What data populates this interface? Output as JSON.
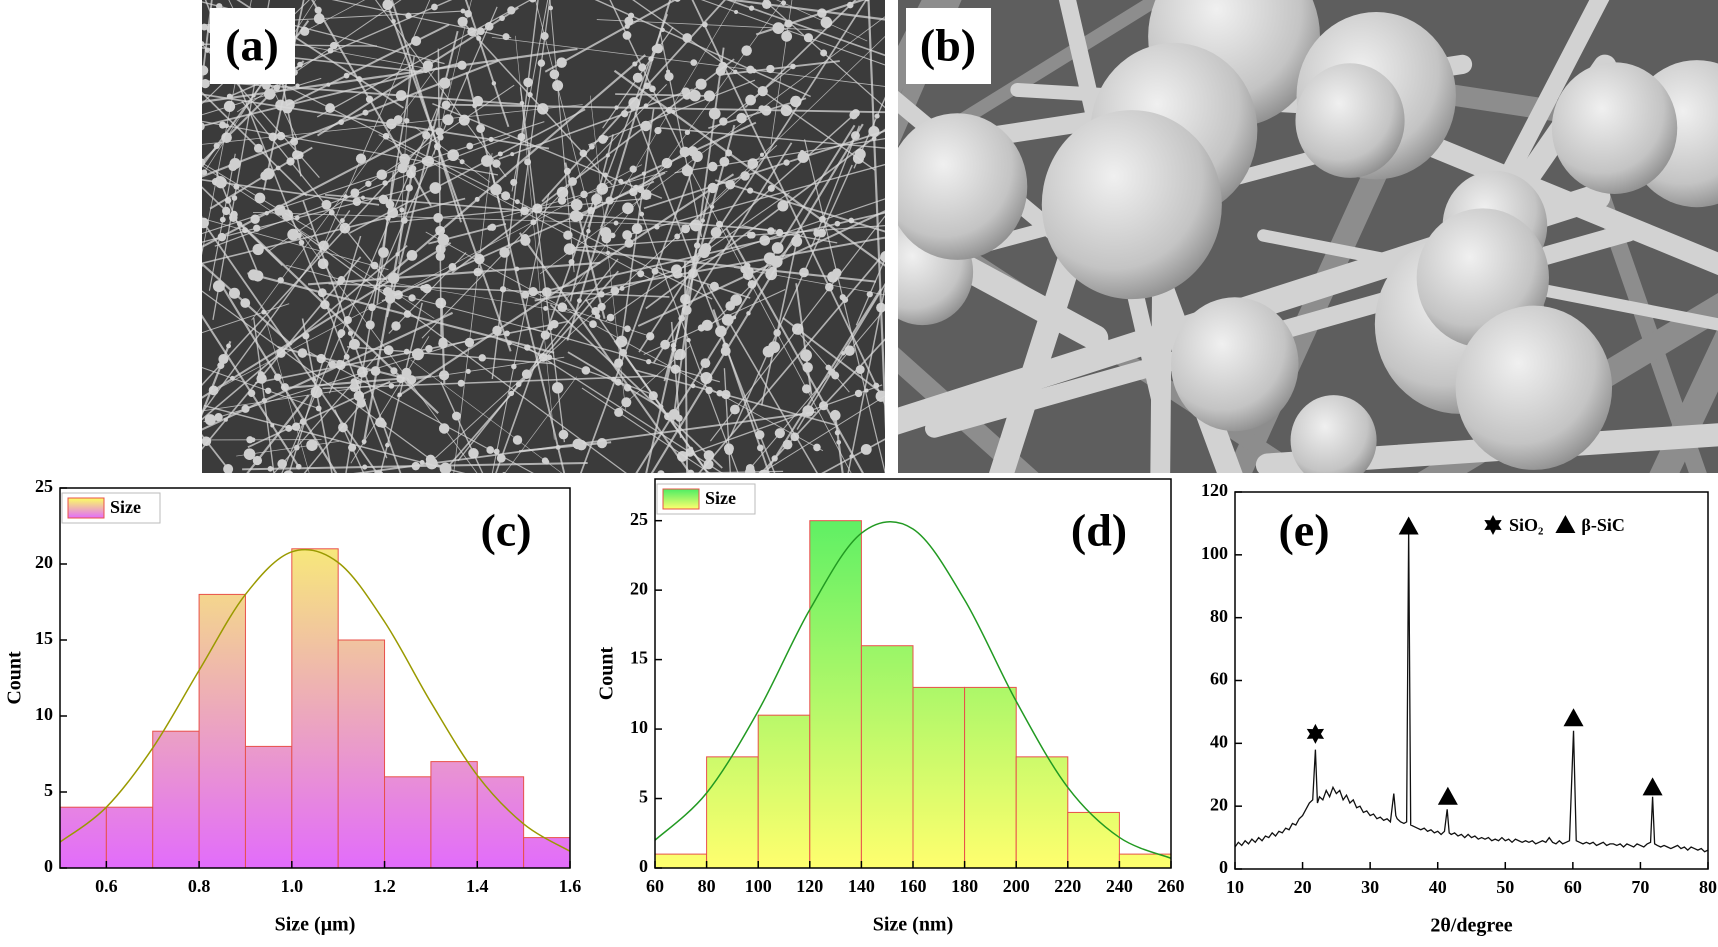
{
  "panels": [
    {
      "label": "(a)"
    },
    {
      "label": "(b)"
    }
  ],
  "chart_data": [
    {
      "type": "histogram",
      "panel_label": "(c)",
      "xlabel": "Size (μm)",
      "ylabel": "Count",
      "bins": [
        0.5,
        0.6,
        0.7,
        0.8,
        0.9,
        1.0,
        1.1,
        1.2,
        1.3,
        1.4,
        1.5,
        1.6
      ],
      "series": [
        {
          "name": "Size",
          "values": [
            4,
            4,
            9,
            18,
            8,
            21,
            15,
            6,
            7,
            6,
            2
          ]
        }
      ],
      "gradient": [
        "#fbff62",
        "#e26cfb"
      ],
      "edge_color": "#e8504a",
      "fit": {
        "x": [
          0.5,
          0.6,
          0.7,
          0.8,
          0.9,
          1.0,
          1.1,
          1.2,
          1.3,
          1.4,
          1.5,
          1.6
        ],
        "y": [
          1.7,
          4.0,
          7.9,
          13.0,
          18.0,
          20.8,
          20.1,
          16.2,
          10.9,
          6.1,
          2.9,
          1.1
        ]
      },
      "fit_color": "#9a9a00",
      "xlim": [
        0.5,
        1.6
      ],
      "xticks": [
        0.6,
        0.8,
        {
          "value": 1,
          "label": "1.0"
        },
        1.2,
        1.4,
        1.6
      ],
      "ylim": [
        0,
        25
      ],
      "yticks": [
        0,
        5,
        10,
        15,
        20,
        25
      ]
    },
    {
      "type": "histogram",
      "panel_label": "(d)",
      "xlabel": "Size (nm)",
      "ylabel": "Count",
      "bins": [
        60,
        80,
        100,
        120,
        140,
        160,
        180,
        200,
        220,
        240,
        260
      ],
      "series": [
        {
          "name": "Size",
          "values": [
            1,
            8,
            11,
            25,
            16,
            13,
            13,
            8,
            4,
            1
          ]
        }
      ],
      "gradient": [
        "#4cee63",
        "#ffff6e"
      ],
      "edge_color": "#e8504a",
      "fit": {
        "x": [
          60,
          80,
          100,
          120,
          140,
          160,
          180,
          200,
          220,
          240,
          260
        ],
        "y": [
          2.0,
          5.4,
          11.3,
          18.6,
          24.1,
          24.4,
          19.3,
          12.0,
          5.8,
          2.2,
          0.7
        ]
      },
      "fit_color": "#229a22",
      "xlim": [
        60,
        260
      ],
      "xticks": [
        60,
        80,
        100,
        120,
        140,
        160,
        180,
        200,
        220,
        240,
        260
      ],
      "ylim": [
        0,
        28
      ],
      "yticks": [
        0,
        5,
        10,
        15,
        20,
        25
      ]
    },
    {
      "type": "line",
      "panel_label": "(e)",
      "xlabel": "2θ/degree",
      "color": "#111111",
      "x": [
        10,
        10.5,
        11,
        11.5,
        12,
        12.5,
        13,
        13.5,
        14,
        14.5,
        15,
        15.5,
        16,
        16.5,
        17,
        17.5,
        18,
        18.5,
        19,
        19.5,
        20,
        20.5,
        21,
        21.5,
        21.9,
        22.2,
        22.5,
        23,
        23.5,
        24,
        24.5,
        25,
        25.5,
        26,
        26.5,
        27,
        27.5,
        28,
        28.5,
        29,
        29.5,
        30,
        30.5,
        31,
        31.5,
        32,
        32.5,
        33,
        33.5,
        33.8,
        34,
        34.5,
        35,
        35.4,
        35.7,
        36,
        36.5,
        37,
        37.5,
        38,
        38.5,
        39,
        39.5,
        40,
        40.5,
        41,
        41.4,
        41.7,
        42,
        42.5,
        43,
        43.5,
        44,
        44.5,
        45,
        45.5,
        46,
        46.5,
        47,
        47.5,
        48,
        48.5,
        49,
        49.5,
        50,
        50.5,
        51,
        51.5,
        52,
        52.5,
        53,
        53.5,
        54,
        54.5,
        55,
        55.5,
        56,
        56.5,
        57,
        57.5,
        58,
        58.5,
        59,
        59.5,
        60.1,
        60.5,
        61,
        61.5,
        62,
        62.5,
        63,
        63.5,
        64,
        64.5,
        65,
        65.5,
        66,
        66.5,
        67,
        67.5,
        68,
        68.5,
        69,
        69.5,
        70,
        70.5,
        71,
        71.5,
        71.8,
        72.1,
        72.5,
        73,
        73.5,
        74,
        74.5,
        75,
        75.5,
        76,
        76.5,
        77,
        77.5,
        78,
        78.5,
        79,
        79.5,
        80
      ],
      "values": [
        7,
        8.5,
        7.5,
        9,
        8,
        9.5,
        8.5,
        10,
        9,
        10.5,
        10,
        11.5,
        10.5,
        12,
        11.5,
        13,
        12.5,
        14.5,
        14,
        16,
        17,
        19,
        21,
        22,
        38,
        21,
        23,
        22,
        25,
        23,
        26,
        24,
        25,
        22,
        23.5,
        21,
        22,
        19.5,
        20,
        18,
        18.5,
        17,
        17.5,
        16,
        16.5,
        15.5,
        16,
        15,
        24,
        17,
        16,
        15,
        14.5,
        15,
        108,
        14,
        13.5,
        13,
        12.5,
        13,
        12,
        12.5,
        11.5,
        12,
        11,
        12,
        19,
        11.5,
        11,
        11.5,
        10.5,
        11,
        10,
        11,
        10,
        10.5,
        9.5,
        10,
        9.5,
        10,
        9,
        9.5,
        9,
        10,
        9,
        9.5,
        8.5,
        9.5,
        9,
        8.5,
        9,
        8.5,
        9,
        8,
        8.5,
        9,
        8.5,
        10,
        8.5,
        8,
        9,
        8,
        8.5,
        9,
        44,
        9,
        8.5,
        8,
        8.5,
        8,
        8.5,
        7.5,
        8,
        8.5,
        7.5,
        8,
        8,
        7.5,
        8,
        7,
        8,
        7.5,
        7,
        8,
        7.5,
        7,
        8,
        8.5,
        23,
        8,
        7.5,
        7,
        7.5,
        7,
        6.5,
        7,
        7.5,
        6.5,
        7,
        6,
        7,
        6.5,
        6,
        6.5,
        5.5,
        6
      ],
      "markers": [
        {
          "x": 21.9,
          "y": 43,
          "symbol": "star"
        },
        {
          "x": 35.7,
          "y": 109,
          "symbol": "triangle"
        },
        {
          "x": 41.5,
          "y": 23,
          "symbol": "triangle"
        },
        {
          "x": 60.1,
          "y": 48,
          "symbol": "triangle"
        },
        {
          "x": 71.8,
          "y": 26,
          "symbol": "triangle"
        }
      ],
      "legend": [
        {
          "symbol": "star",
          "label": "SiO₂"
        },
        {
          "symbol": "triangle",
          "label": "β-SiC"
        }
      ],
      "xlim": [
        10,
        80
      ],
      "xticks": [
        10,
        20,
        30,
        40,
        50,
        60,
        70,
        80
      ],
      "ylim": [
        0,
        120
      ],
      "yticks": [
        0,
        20,
        40,
        60,
        80,
        100,
        120
      ]
    }
  ]
}
